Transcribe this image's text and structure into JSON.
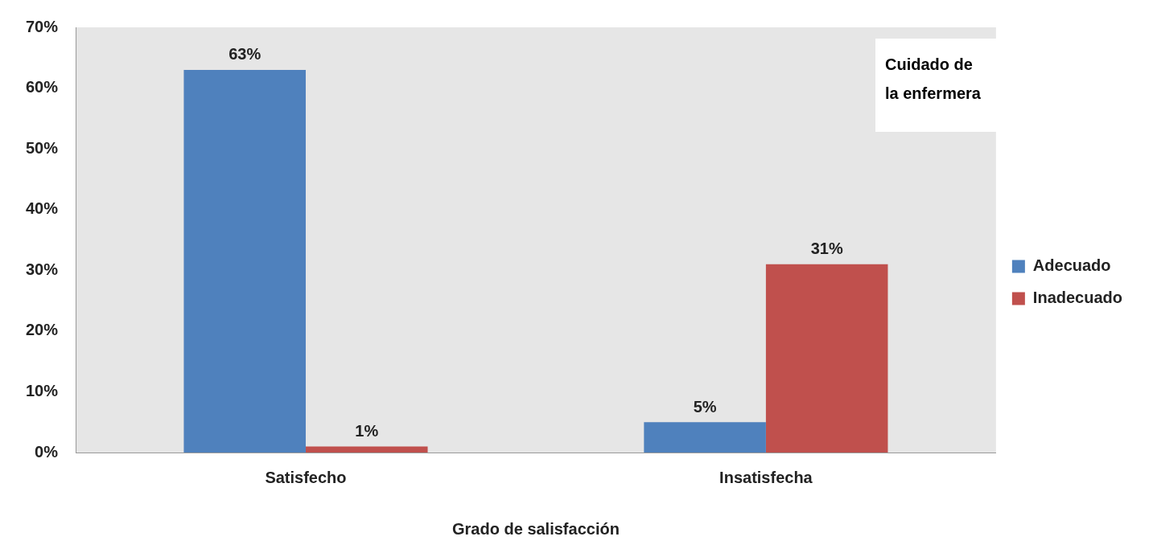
{
  "chart_data": {
    "type": "bar",
    "categories": [
      "Satisfecho",
      "Insatisfecha"
    ],
    "series": [
      {
        "name": "Adecuado",
        "color": "#4f81bd",
        "values": [
          63,
          5
        ],
        "value_labels": [
          "63%",
          "5%"
        ]
      },
      {
        "name": "Inadecuado",
        "color": "#c0504d",
        "values": [
          1,
          31
        ],
        "value_labels": [
          "1%",
          "31%"
        ]
      }
    ],
    "xlabel": "Grado de salisfacción",
    "annotations": [
      "Cuidado de la enfermera"
    ],
    "ylim": [
      0,
      70
    ],
    "yticks": [
      {
        "value": 0,
        "label": "0%"
      },
      {
        "value": 10,
        "label": "10%"
      },
      {
        "value": 20,
        "label": "20%"
      },
      {
        "value": 30,
        "label": "30%"
      },
      {
        "value": 40,
        "label": "40%"
      },
      {
        "value": 50,
        "label": "50%"
      },
      {
        "value": 60,
        "label": "60%"
      },
      {
        "value": 70,
        "label": "70%"
      }
    ],
    "legend": "right",
    "grid": false
  }
}
